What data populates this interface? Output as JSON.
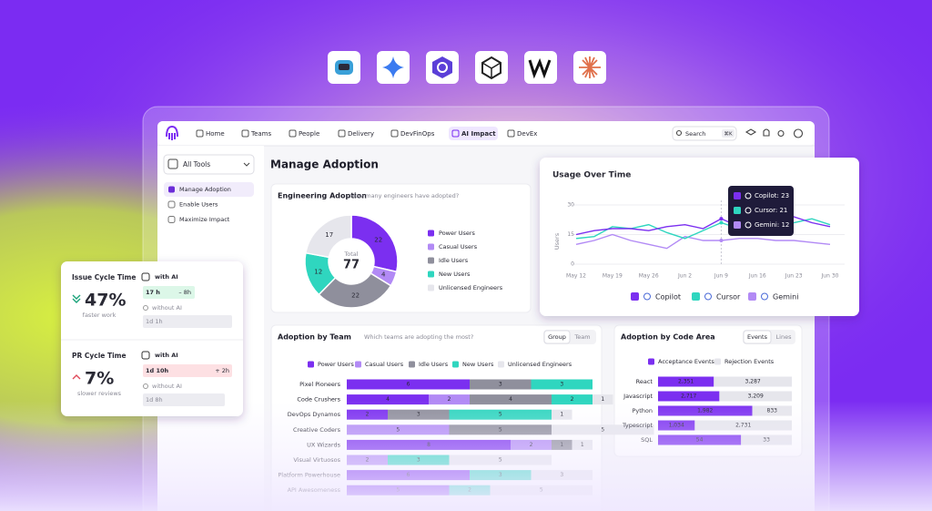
{
  "nav": {
    "items": [
      "Home",
      "Teams",
      "People",
      "Delivery",
      "DevFinOps",
      "AI Impact",
      "DevEx"
    ],
    "search": "Search",
    "shortcut": "⌘K"
  },
  "sidebar": {
    "selector": "All Tools",
    "items": [
      "Manage Adoption",
      "Enable Users",
      "Maximize Impact"
    ]
  },
  "page_title": "Manage Adoption",
  "engineering_adoption": {
    "type": "pie",
    "title": "Engineering Adoption",
    "subtitle": "How many engineers have adopted?",
    "total_label": "Total",
    "total": 77,
    "categories": [
      "Power Users",
      "Casual Users",
      "Idle Users",
      "New Users",
      "Unlicensed Engineers"
    ],
    "values": [
      22,
      4,
      22,
      12,
      17
    ],
    "colors": [
      "#7b2ff0",
      "#b28af5",
      "#8f8f9c",
      "#2fd6bf",
      "#e6e6ec"
    ]
  },
  "usage_over_time": {
    "type": "line",
    "title": "Usage Over Time",
    "ylabel": "Users",
    "categories": [
      "May 12",
      null,
      "May 19",
      null,
      "May 26",
      null,
      "Jun 2",
      null,
      "Jun 9",
      null,
      "Jun 16",
      null,
      "Jun 23",
      null,
      "Jun 30"
    ],
    "ylim": [
      0,
      30
    ],
    "yticks": [
      0,
      15,
      30
    ],
    "grid": true,
    "series": [
      {
        "name": "Copilot",
        "color": "#7b2ff0",
        "values": [
          15,
          17,
          18,
          18,
          17,
          19,
          20,
          18,
          23,
          19,
          21,
          20,
          24,
          21,
          19
        ]
      },
      {
        "name": "Cursor",
        "color": "#2fd6bf",
        "values": [
          13,
          14,
          19,
          18,
          20,
          16,
          13,
          17,
          21,
          18,
          17,
          22,
          21,
          23,
          20
        ]
      },
      {
        "name": "Gemini",
        "color": "#b28af5",
        "values": [
          10,
          12,
          15,
          12,
          10,
          8,
          14,
          12,
          12,
          13,
          13,
          12,
          12,
          11,
          10
        ]
      }
    ],
    "tooltip": [
      "Copilot: 23",
      "Cursor: 21",
      "Gemini: 12"
    ]
  },
  "adoption_by_team": {
    "type": "bar",
    "stacked": true,
    "title": "Adoption by Team",
    "subtitle": "Which teams are adopting the most?",
    "toggles": [
      "Group",
      "Team"
    ],
    "categories": [
      "Pixel Pioneers",
      "Code Crushers",
      "DevOps Dynamos",
      "Creative Coders",
      "UX Wizards",
      "Visual Virtuosos",
      "Platform Powerhouse",
      "API Awesomeness"
    ],
    "series": [
      {
        "name": "Power Users",
        "color": "#7b2ff0",
        "values": [
          6,
          4,
          2,
          0,
          8,
          0,
          6,
          5
        ]
      },
      {
        "name": "Casual Users",
        "color": "#b28af5",
        "values": [
          0,
          2,
          0,
          5,
          2,
          2,
          0,
          0
        ]
      },
      {
        "name": "Idle Users",
        "color": "#8f8f9c",
        "values": [
          3,
          4,
          3,
          5,
          1,
          0,
          0,
          0
        ]
      },
      {
        "name": "New Users",
        "color": "#2fd6bf",
        "values": [
          3,
          2,
          5,
          0,
          0,
          3,
          3,
          2
        ]
      },
      {
        "name": "Unlicensed Engineers",
        "color": "#e6e6ec",
        "values": [
          0,
          1,
          1,
          5,
          1,
          5,
          3,
          5
        ]
      }
    ]
  },
  "adoption_by_code_area": {
    "type": "bar",
    "stacked": true,
    "normalized": true,
    "title": "Adoption by Code Area",
    "toggles": [
      "Events",
      "Lines"
    ],
    "categories": [
      "React",
      "Javascript",
      "Python",
      "Typescript",
      "SQL"
    ],
    "series": [
      {
        "name": "Acceptance Events",
        "color": "#7b2ff0",
        "values": [
          2351,
          2717,
          1982,
          1034,
          54
        ],
        "value_labels": [
          "2,351",
          "2,717",
          "1,982",
          "1,034",
          "54"
        ]
      },
      {
        "name": "Rejection Events",
        "color": "#e6e6ec",
        "values": [
          3287,
          3209,
          833,
          2731,
          33
        ],
        "value_labels": [
          "3,287",
          "3,209",
          "833",
          "2,731",
          "33"
        ]
      }
    ]
  },
  "cycle_times": [
    {
      "title": "Issue Cycle Time",
      "change": "47%",
      "caption": "faster work",
      "with_ai_label": "with AI",
      "with_ai": "17 h",
      "delta": "– 8h",
      "without_ai_label": "without AI",
      "without_ai": "1d 1h"
    },
    {
      "title": "PR Cycle Time",
      "change": "7%",
      "caption": "slower reviews",
      "with_ai_label": "with AI",
      "with_ai": "1d 10h",
      "delta": "+ 2h",
      "without_ai_label": "without AI",
      "without_ai": "1d 8h"
    }
  ]
}
